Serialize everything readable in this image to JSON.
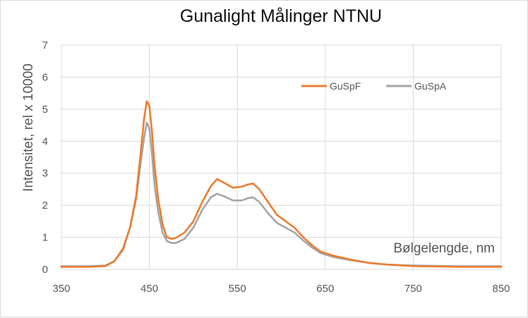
{
  "chart_data": {
    "type": "line",
    "title": "Gunalight Målinger NTNU",
    "xlabel": "Bølgelengde, nm",
    "ylabel": "Intensitet, rel  x 10000",
    "xlim": [
      350,
      850
    ],
    "ylim": [
      0,
      7
    ],
    "x_ticks": [
      "350",
      "450",
      "550",
      "650",
      "750",
      "850"
    ],
    "y_ticks": [
      "0",
      "1",
      "2",
      "3",
      "4",
      "5",
      "6",
      "7"
    ],
    "grid": true,
    "legend_position": "top-right",
    "series": [
      {
        "name": "GuSpF",
        "color": "#ED7D31",
        "points": [
          [
            350,
            0.08
          ],
          [
            380,
            0.08
          ],
          [
            400,
            0.1
          ],
          [
            410,
            0.25
          ],
          [
            420,
            0.65
          ],
          [
            428,
            1.3
          ],
          [
            435,
            2.3
          ],
          [
            440,
            3.6
          ],
          [
            444,
            4.7
          ],
          [
            447,
            5.25
          ],
          [
            450,
            5.1
          ],
          [
            453,
            4.3
          ],
          [
            456,
            3.2
          ],
          [
            460,
            2.2
          ],
          [
            465,
            1.4
          ],
          [
            470,
            1.0
          ],
          [
            475,
            0.95
          ],
          [
            480,
            0.98
          ],
          [
            490,
            1.15
          ],
          [
            500,
            1.5
          ],
          [
            510,
            2.1
          ],
          [
            520,
            2.6
          ],
          [
            527,
            2.82
          ],
          [
            535,
            2.7
          ],
          [
            545,
            2.55
          ],
          [
            555,
            2.58
          ],
          [
            562,
            2.65
          ],
          [
            568,
            2.68
          ],
          [
            575,
            2.5
          ],
          [
            585,
            2.1
          ],
          [
            595,
            1.7
          ],
          [
            605,
            1.5
          ],
          [
            615,
            1.3
          ],
          [
            625,
            1.0
          ],
          [
            635,
            0.75
          ],
          [
            645,
            0.55
          ],
          [
            660,
            0.42
          ],
          [
            680,
            0.3
          ],
          [
            700,
            0.2
          ],
          [
            720,
            0.15
          ],
          [
            750,
            0.1
          ],
          [
            800,
            0.08
          ],
          [
            850,
            0.08
          ]
        ]
      },
      {
        "name": "GuSpA",
        "color": "#A5A5A5",
        "points": [
          [
            350,
            0.1
          ],
          [
            380,
            0.1
          ],
          [
            400,
            0.12
          ],
          [
            410,
            0.25
          ],
          [
            420,
            0.6
          ],
          [
            428,
            1.3
          ],
          [
            435,
            2.2
          ],
          [
            440,
            3.3
          ],
          [
            444,
            4.1
          ],
          [
            447,
            4.58
          ],
          [
            450,
            4.4
          ],
          [
            453,
            3.6
          ],
          [
            456,
            2.6
          ],
          [
            460,
            1.8
          ],
          [
            465,
            1.15
          ],
          [
            470,
            0.88
          ],
          [
            475,
            0.82
          ],
          [
            480,
            0.82
          ],
          [
            490,
            0.95
          ],
          [
            500,
            1.3
          ],
          [
            510,
            1.85
          ],
          [
            520,
            2.25
          ],
          [
            527,
            2.36
          ],
          [
            535,
            2.28
          ],
          [
            545,
            2.15
          ],
          [
            555,
            2.15
          ],
          [
            562,
            2.22
          ],
          [
            568,
            2.25
          ],
          [
            575,
            2.1
          ],
          [
            585,
            1.75
          ],
          [
            595,
            1.45
          ],
          [
            605,
            1.3
          ],
          [
            615,
            1.15
          ],
          [
            625,
            0.9
          ],
          [
            635,
            0.68
          ],
          [
            645,
            0.5
          ],
          [
            660,
            0.38
          ],
          [
            680,
            0.28
          ],
          [
            700,
            0.2
          ],
          [
            720,
            0.15
          ],
          [
            750,
            0.12
          ],
          [
            800,
            0.1
          ],
          [
            850,
            0.1
          ]
        ]
      }
    ]
  }
}
